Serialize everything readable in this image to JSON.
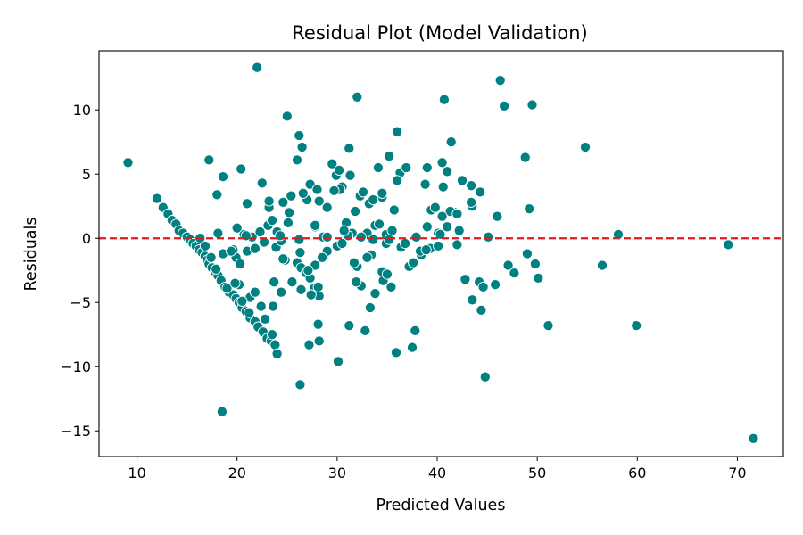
{
  "chart_data": {
    "type": "scatter",
    "title": "Residual Plot (Model Validation)",
    "xlabel": "Predicted Values",
    "ylabel": "Residuals",
    "xlim": [
      6.2,
      74.6
    ],
    "ylim": [
      -17,
      14.6
    ],
    "xticks": [
      10,
      20,
      30,
      40,
      50,
      60,
      70
    ],
    "yticks": [
      -15,
      -10,
      -5,
      0,
      5,
      10
    ],
    "ytick_labels": [
      "−15",
      "−10",
      "−5",
      "0",
      "5",
      "10"
    ],
    "grid": false,
    "reference_line": {
      "y": 0,
      "style": "dashed",
      "color": "#e41a1c"
    },
    "marker_color": "#008080",
    "marker_edge_color": "#ffffff",
    "points": [
      [
        9.1,
        5.9
      ],
      [
        12.0,
        3.1
      ],
      [
        12.6,
        2.4
      ],
      [
        13.1,
        1.9
      ],
      [
        13.5,
        1.4
      ],
      [
        13.9,
        1.1
      ],
      [
        14.2,
        0.6
      ],
      [
        14.6,
        0.4
      ],
      [
        15.0,
        0.1
      ],
      [
        15.3,
        -0.1
      ],
      [
        15.6,
        -0.4
      ],
      [
        15.9,
        -0.6
      ],
      [
        16.2,
        -0.9
      ],
      [
        16.5,
        -1.1
      ],
      [
        16.8,
        -1.4
      ],
      [
        17.0,
        -1.7
      ],
      [
        17.2,
        -2.0
      ],
      [
        17.5,
        -2.3
      ],
      [
        17.8,
        -2.6
      ],
      [
        18.1,
        -2.9
      ],
      [
        18.4,
        -3.3
      ],
      [
        18.8,
        -3.8
      ],
      [
        19.2,
        -4.2
      ],
      [
        19.6,
        -4.4
      ],
      [
        19.9,
        -4.7
      ],
      [
        20.2,
        -5.0
      ],
      [
        20.5,
        -5.4
      ],
      [
        20.9,
        -5.7
      ],
      [
        21.3,
        -6.2
      ],
      [
        21.8,
        -6.5
      ],
      [
        22.1,
        -6.9
      ],
      [
        22.6,
        -7.3
      ],
      [
        23.0,
        -7.8
      ],
      [
        23.4,
        -8.0
      ],
      [
        23.8,
        -8.3
      ],
      [
        24.0,
        -9.0
      ],
      [
        16.3,
        0.0
      ],
      [
        16.8,
        -0.6
      ],
      [
        17.4,
        -1.5
      ],
      [
        17.9,
        -2.4
      ],
      [
        18.6,
        -1.2
      ],
      [
        19.0,
        -3.9
      ],
      [
        19.6,
        -0.9
      ],
      [
        19.9,
        -1.5
      ],
      [
        20.3,
        -2.0
      ],
      [
        20.7,
        0.3
      ],
      [
        21.0,
        -1.0
      ],
      [
        21.5,
        0.1
      ],
      [
        21.8,
        -0.8
      ],
      [
        22.3,
        0.5
      ],
      [
        22.7,
        -0.3
      ],
      [
        23.1,
        1.0
      ],
      [
        23.5,
        1.4
      ],
      [
        23.9,
        -0.7
      ],
      [
        24.4,
        -0.2
      ],
      [
        24.8,
        -1.7
      ],
      [
        25.1,
        1.2
      ],
      [
        25.5,
        -3.4
      ],
      [
        26.0,
        -1.9
      ],
      [
        26.4,
        -2.3
      ],
      [
        26.9,
        -2.7
      ],
      [
        27.3,
        -3.1
      ],
      [
        27.7,
        -3.9
      ],
      [
        28.2,
        -4.5
      ],
      [
        28.6,
        -1.5
      ],
      [
        17.2,
        6.1
      ],
      [
        18.6,
        4.8
      ],
      [
        18.0,
        3.4
      ],
      [
        20.4,
        5.4
      ],
      [
        21.0,
        2.7
      ],
      [
        22.0,
        13.3
      ],
      [
        22.5,
        4.3
      ],
      [
        23.2,
        2.4
      ],
      [
        24.0,
        0.5
      ],
      [
        24.6,
        2.8
      ],
      [
        25.0,
        9.5
      ],
      [
        25.4,
        3.3
      ],
      [
        26.0,
        6.1
      ],
      [
        26.2,
        8.0
      ],
      [
        26.5,
        7.1
      ],
      [
        27.0,
        3.0
      ],
      [
        27.3,
        4.2
      ],
      [
        27.8,
        0.9
      ],
      [
        28.2,
        2.9
      ],
      [
        28.6,
        0.1
      ],
      [
        29.0,
        2.4
      ],
      [
        29.5,
        5.8
      ],
      [
        29.9,
        4.9
      ],
      [
        30.2,
        5.3
      ],
      [
        30.5,
        4.0
      ],
      [
        30.9,
        1.2
      ],
      [
        31.2,
        7.0
      ],
      [
        31.5,
        0.4
      ],
      [
        31.8,
        2.1
      ],
      [
        32.0,
        11.0
      ],
      [
        32.3,
        3.3
      ],
      [
        32.6,
        3.6
      ],
      [
        33.0,
        0.4
      ],
      [
        33.4,
        -1.3
      ],
      [
        33.8,
        1.0
      ],
      [
        34.1,
        5.5
      ],
      [
        34.5,
        3.2
      ],
      [
        34.9,
        0.3
      ],
      [
        35.2,
        6.4
      ],
      [
        35.7,
        2.2
      ],
      [
        36.0,
        8.3
      ],
      [
        36.3,
        5.1
      ],
      [
        36.9,
        5.5
      ],
      [
        37.2,
        -2.2
      ],
      [
        37.6,
        -1.9
      ],
      [
        37.9,
        0.1
      ],
      [
        38.4,
        -1.3
      ],
      [
        38.8,
        4.2
      ],
      [
        39.0,
        0.9
      ],
      [
        39.4,
        2.2
      ],
      [
        39.8,
        2.4
      ],
      [
        40.1,
        0.4
      ],
      [
        40.5,
        5.9
      ],
      [
        40.7,
        10.8
      ],
      [
        41.0,
        5.2
      ],
      [
        41.4,
        7.5
      ],
      [
        41.8,
        2.0
      ],
      [
        42.2,
        0.6
      ],
      [
        42.5,
        4.5
      ],
      [
        42.8,
        -3.2
      ],
      [
        43.5,
        2.5
      ],
      [
        43.5,
        -4.8
      ],
      [
        44.2,
        -3.4
      ],
      [
        44.4,
        -5.6
      ],
      [
        44.6,
        -3.8
      ],
      [
        44.8,
        -10.8
      ],
      [
        45.1,
        0.1
      ],
      [
        45.8,
        -3.6
      ],
      [
        46.0,
        1.7
      ],
      [
        46.3,
        12.3
      ],
      [
        46.7,
        10.3
      ],
      [
        47.1,
        -2.1
      ],
      [
        47.7,
        -2.7
      ],
      [
        48.8,
        6.3
      ],
      [
        49.0,
        -1.2
      ],
      [
        49.2,
        2.3
      ],
      [
        49.5,
        10.4
      ],
      [
        49.8,
        -2.0
      ],
      [
        50.1,
        -3.1
      ],
      [
        51.1,
        -6.8
      ],
      [
        54.8,
        7.1
      ],
      [
        56.5,
        -2.1
      ],
      [
        58.1,
        0.3
      ],
      [
        59.9,
        -6.8
      ],
      [
        69.1,
        -0.5
      ],
      [
        71.6,
        -15.6
      ],
      [
        18.5,
        -13.5
      ],
      [
        26.3,
        -11.4
      ],
      [
        30.1,
        -9.6
      ],
      [
        32.8,
        -7.2
      ],
      [
        35.9,
        -8.9
      ],
      [
        37.5,
        -8.5
      ],
      [
        37.8,
        -7.2
      ],
      [
        27.2,
        -8.3
      ],
      [
        28.2,
        -8.0
      ],
      [
        31.2,
        -6.8
      ],
      [
        28.1,
        -6.7
      ],
      [
        23.6,
        -5.3
      ],
      [
        24.4,
        -4.2
      ],
      [
        26.4,
        -4.0
      ],
      [
        27.4,
        -4.4
      ],
      [
        28.1,
        -3.8
      ],
      [
        33.3,
        -5.4
      ],
      [
        33.8,
        -4.3
      ],
      [
        34.5,
        -2.6
      ],
      [
        35.4,
        -3.8
      ],
      [
        29.0,
        -1.0
      ],
      [
        30.0,
        -0.6
      ],
      [
        31.1,
        0.2
      ],
      [
        32.4,
        -3.7
      ],
      [
        33.6,
        -0.1
      ],
      [
        34.9,
        -0.4
      ],
      [
        35.5,
        0.6
      ],
      [
        36.4,
        -0.7
      ],
      [
        38.3,
        -1.0
      ],
      [
        39.3,
        -0.8
      ],
      [
        40.3,
        0.3
      ],
      [
        41.3,
        2.1
      ],
      [
        42.0,
        1.9
      ],
      [
        43.4,
        2.8
      ],
      [
        44.3,
        3.6
      ],
      [
        39.0,
        5.5
      ],
      [
        40.6,
        4.0
      ],
      [
        36.0,
        4.5
      ],
      [
        34.2,
        1.1
      ],
      [
        33.2,
        2.7
      ],
      [
        32.0,
        -2.2
      ],
      [
        30.3,
        3.8
      ],
      [
        31.3,
        4.9
      ],
      [
        29.7,
        3.7
      ],
      [
        28.0,
        3.8
      ],
      [
        27.8,
        1.0
      ],
      [
        26.6,
        3.5
      ],
      [
        26.2,
        -0.1
      ],
      [
        25.2,
        2.0
      ],
      [
        24.3,
        0.2
      ],
      [
        23.2,
        2.9
      ],
      [
        20.9,
        0.2
      ],
      [
        20.0,
        0.8
      ],
      [
        19.4,
        -1.0
      ],
      [
        18.1,
        0.4
      ],
      [
        27.8,
        -2.1
      ],
      [
        29.0,
        0.1
      ],
      [
        30.7,
        0.6
      ],
      [
        32.4,
        0.1
      ],
      [
        34.5,
        3.5
      ],
      [
        35.2,
        -0.1
      ],
      [
        33.6,
        3.0
      ],
      [
        31.7,
        -1.9
      ],
      [
        30.5,
        -0.4
      ],
      [
        28.5,
        -1.5
      ],
      [
        27.1,
        -2.5
      ],
      [
        26.3,
        -1.1
      ],
      [
        24.6,
        -1.6
      ],
      [
        23.7,
        -3.4
      ],
      [
        22.4,
        -5.3
      ],
      [
        21.3,
        -4.6
      ],
      [
        20.2,
        -3.6
      ],
      [
        20.5,
        -4.9
      ],
      [
        21.2,
        -5.8
      ],
      [
        19.8,
        -3.5
      ],
      [
        22.8,
        -6.3
      ],
      [
        23.5,
        -7.5
      ],
      [
        21.8,
        -4.2
      ],
      [
        33.0,
        -1.5
      ],
      [
        31.9,
        -3.4
      ],
      [
        34.6,
        -3.3
      ],
      [
        35.0,
        -2.8
      ],
      [
        36.8,
        -0.4
      ],
      [
        38.9,
        -0.9
      ],
      [
        40.1,
        -0.6
      ],
      [
        42.0,
        -0.5
      ],
      [
        43.4,
        4.1
      ],
      [
        40.5,
        1.7
      ],
      [
        41.0,
        0.9
      ]
    ]
  }
}
